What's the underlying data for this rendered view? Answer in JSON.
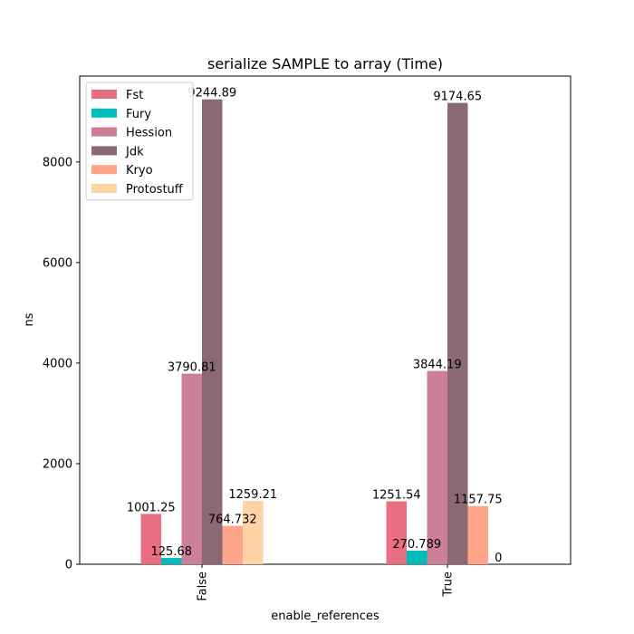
{
  "chart_data": {
    "type": "bar",
    "title": "serialize SAMPLE to array (Time)",
    "xlabel": "enable_references",
    "ylabel": "ns",
    "categories": [
      "False",
      "True"
    ],
    "ylim": [
      0,
      9708.13
    ],
    "yticks": [
      0,
      2000,
      4000,
      6000,
      8000
    ],
    "grid": false,
    "legend_position": "top-left",
    "series": [
      {
        "name": "Fst",
        "color": "#e96e81",
        "values": [
          1001.25,
          1251.54
        ],
        "labels": [
          "1001.25",
          "1251.54"
        ]
      },
      {
        "name": "Fury",
        "color": "#00bcbc",
        "values": [
          125.68,
          270.789
        ],
        "labels": [
          "125.68",
          "270.789"
        ]
      },
      {
        "name": "Hession",
        "color": "#cc7f98",
        "values": [
          3790.81,
          3844.19
        ],
        "labels": [
          "3790.81",
          "3844.19"
        ]
      },
      {
        "name": "Jdk",
        "color": "#8b6972",
        "values": [
          9244.89,
          9174.65
        ],
        "labels": [
          "9244.89",
          "9174.65"
        ]
      },
      {
        "name": "Kryo",
        "color": "#ffa58a",
        "values": [
          764.732,
          1157.75
        ],
        "labels": [
          "764.732",
          "1157.75"
        ]
      },
      {
        "name": "Protostuff",
        "color": "#ffd3a5",
        "values": [
          1259.21,
          0
        ],
        "labels": [
          "1259.21",
          "0"
        ]
      }
    ]
  }
}
